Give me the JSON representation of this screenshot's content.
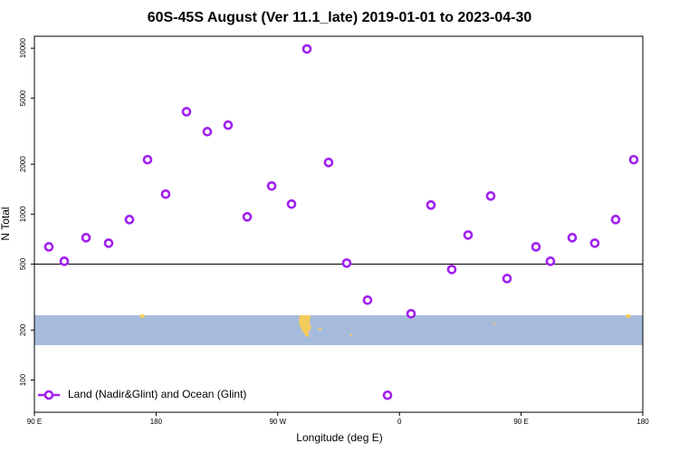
{
  "chart_data": {
    "type": "scatter",
    "title": "60S-45S August (Ver 11.1_late)   2019-01-01 to 2023-04-30",
    "x_label": "Longitude (deg E)",
    "y_label": "N Total",
    "xlim": [
      90,
      540
    ],
    "xticks": [
      {
        "value": 90,
        "label": "90 E"
      },
      180,
      {
        "value": 270,
        "label": "90 W"
      },
      {
        "value": 360,
        "label": "0"
      },
      {
        "value": 450,
        "label": "90 E"
      },
      {
        "value": 540,
        "label": "180"
      }
    ],
    "ylim": [
      64,
      11800
    ],
    "log_y": true,
    "yticks": [
      100,
      200,
      500,
      1000,
      2000,
      5000,
      10000
    ],
    "reference_line": 500,
    "legend": "bottom-left",
    "series": [
      {
        "name": "Land (Nadir&Glint) and Ocean (Glint)",
        "color": "#a020f0",
        "x": [
          100.7,
          112.1,
          128.2,
          144.9,
          160.3,
          173.7,
          187.1,
          202.5,
          217.9,
          233.3,
          247.4,
          265.5,
          280.2,
          291.6,
          307.6,
          321.0,
          336.4,
          351.2,
          368.6,
          383.3,
          398.7,
          410.8,
          427.5,
          439.6,
          461.0,
          471.7,
          487.8,
          504.5,
          519.9,
          533.3
        ],
        "values": [
          635,
          520,
          721,
          668,
          927,
          2128,
          1319,
          4140,
          3140,
          3438,
          963,
          1477,
          1149,
          9890,
          2047,
          507,
          303,
          81,
          251,
          1134,
          464,
          748,
          1286,
          409,
          635,
          520,
          721,
          668,
          927,
          2128
        ]
      }
    ]
  }
}
